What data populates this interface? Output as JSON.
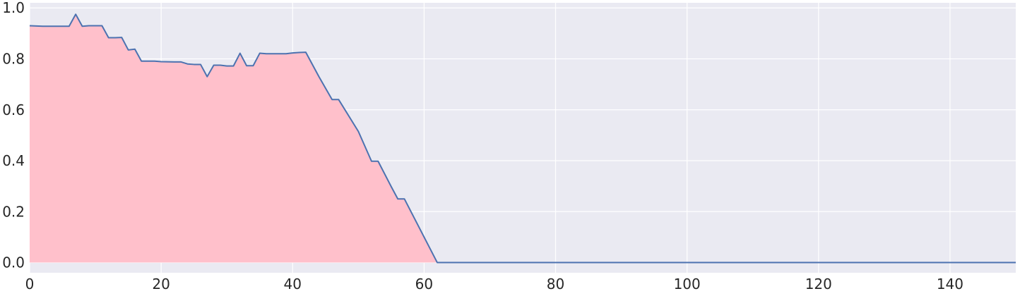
{
  "chart_data": {
    "type": "area",
    "title": "",
    "xlabel": "",
    "ylabel": "",
    "xlim": [
      0,
      150
    ],
    "ylim": [
      -0.04,
      1.02
    ],
    "grid": true,
    "legend": "none",
    "x_ticks": [
      0,
      20,
      40,
      60,
      80,
      100,
      120,
      140
    ],
    "y_ticks": [
      0.0,
      0.2,
      0.4,
      0.6,
      0.8,
      1.0
    ],
    "x_tick_labels": [
      "0",
      "20",
      "40",
      "60",
      "80",
      "100",
      "120",
      "140"
    ],
    "y_tick_labels": [
      "0.0",
      "0.2",
      "0.4",
      "0.6",
      "0.8",
      "1.0"
    ],
    "colors": {
      "background": "#EAEAF2",
      "grid": "#FFFFFF",
      "line": "#4C72B0",
      "fill": "#FFC0CB",
      "text": "#262626"
    },
    "series": [
      {
        "x": [
          0,
          2,
          3,
          4,
          5,
          6,
          7,
          8,
          9,
          10,
          11,
          12,
          13,
          14,
          15,
          16,
          17,
          18,
          19,
          20,
          22,
          23,
          24,
          25,
          26,
          27,
          28,
          29,
          30,
          31,
          32,
          33,
          34,
          35,
          36,
          37,
          38,
          39,
          40,
          41,
          42,
          44,
          46,
          47,
          50,
          52,
          53,
          55,
          56,
          57,
          62,
          150
        ],
        "y": [
          0.93,
          0.928,
          0.928,
          0.928,
          0.928,
          0.928,
          0.975,
          0.928,
          0.93,
          0.93,
          0.93,
          0.883,
          0.883,
          0.884,
          0.835,
          0.838,
          0.791,
          0.791,
          0.791,
          0.789,
          0.788,
          0.788,
          0.78,
          0.778,
          0.778,
          0.73,
          0.775,
          0.775,
          0.772,
          0.772,
          0.822,
          0.773,
          0.773,
          0.822,
          0.82,
          0.82,
          0.82,
          0.82,
          0.823,
          0.825,
          0.826,
          0.73,
          0.64,
          0.64,
          0.515,
          0.398,
          0.398,
          0.298,
          0.25,
          0.25,
          0.0,
          0.0
        ]
      }
    ],
    "fill_until_x": 62
  }
}
